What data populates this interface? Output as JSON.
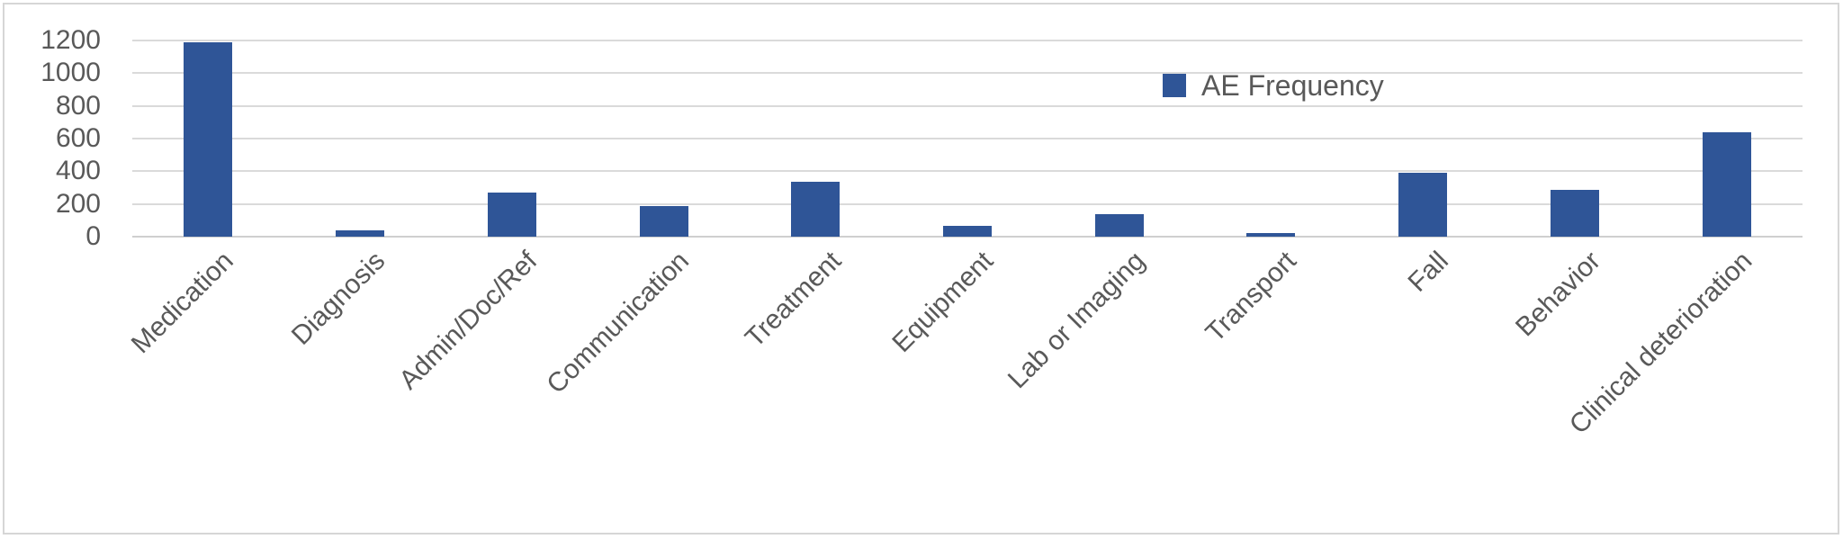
{
  "chart_data": {
    "type": "bar",
    "title": "",
    "xlabel": "",
    "ylabel": "",
    "categories": [
      "Medication",
      "Diagnosis",
      "Admin/Doc/Ref",
      "Communication",
      "Treatment",
      "Equipment",
      "Lab or Imaging",
      "Transport",
      "Fall",
      "Behavior",
      "Clinical deterioration"
    ],
    "series": [
      {
        "name": "AE Frequency",
        "values": [
          1190,
          40,
          270,
          185,
          335,
          65,
          140,
          20,
          390,
          285,
          640
        ]
      }
    ],
    "ylim": [
      0,
      1200
    ],
    "yticks": [
      0,
      200,
      400,
      600,
      800,
      1000,
      1200
    ],
    "grid": true,
    "legend_entries": [
      "AE Frequency"
    ],
    "legend_position": "inside-upper-right"
  },
  "legend": {
    "label": "AE Frequency"
  },
  "colors": {
    "bar": "#2F5597",
    "text": "#595959",
    "gridline": "#DADADA",
    "axis_line": "#CFCFCF",
    "frame_border": "#D6D6D6",
    "background": "#FFFFFF"
  }
}
